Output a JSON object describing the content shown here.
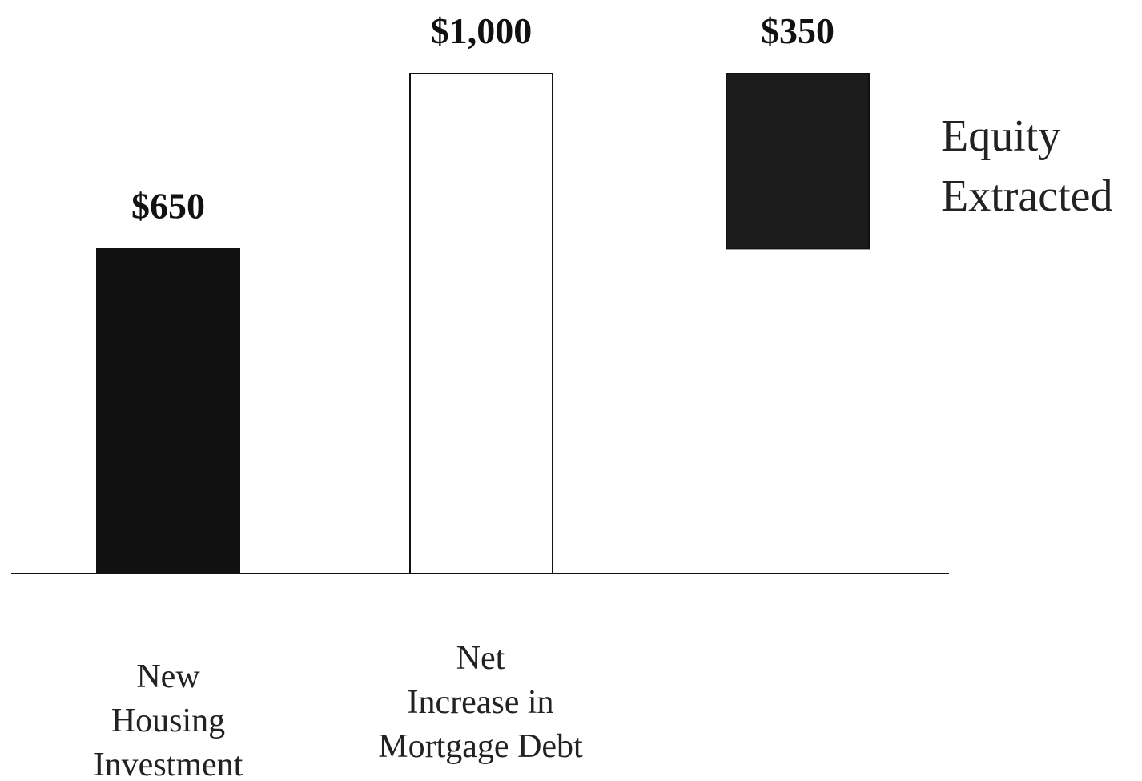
{
  "chart_data": {
    "type": "waterfall",
    "categories": [
      "New\nHousing\nInvestment",
      "Net\nIncrease in\nMortgage Debt",
      "Equity\nExtracted"
    ],
    "values": [
      650,
      1000,
      350
    ],
    "value_labels": [
      "$650",
      "$1,000",
      "$350"
    ],
    "measure": [
      "relative",
      "total",
      "relative"
    ],
    "colors": [
      "#111111",
      "#ffffff",
      "#1c1c1c"
    ],
    "ylim": [
      0,
      1000
    ]
  }
}
